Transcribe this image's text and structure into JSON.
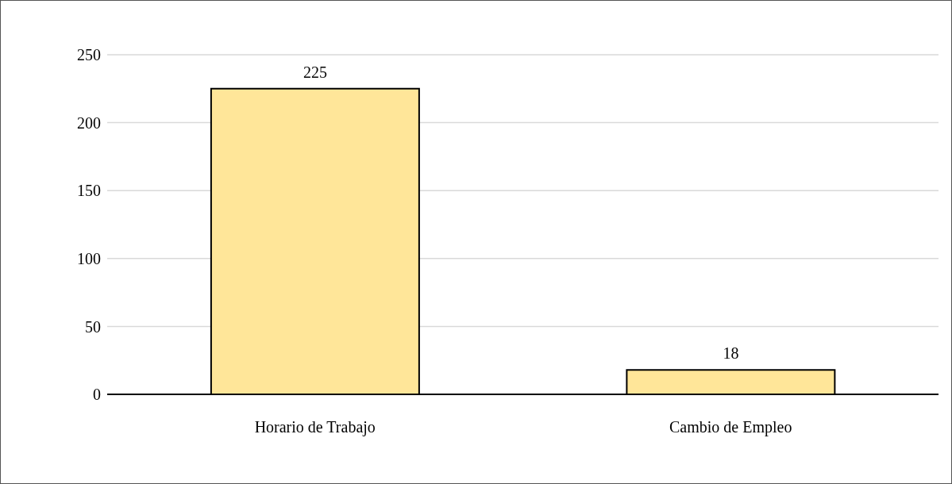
{
  "chart_data": {
    "type": "bar",
    "categories": [
      "Horario de Trabajo",
      "Cambio de Empleo"
    ],
    "values": [
      225,
      18
    ],
    "color": "#ffe699",
    "ylim": [
      0,
      250
    ],
    "yticks": [
      0,
      50,
      100,
      150,
      200,
      250
    ],
    "grid": "y",
    "data_labels": true
  }
}
